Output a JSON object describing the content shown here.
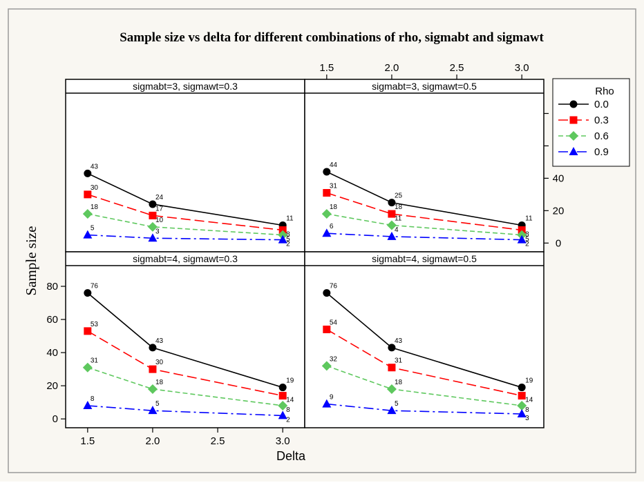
{
  "title": "Sample size vs delta for different combinations of rho, sigmabt and sigmawt",
  "ylabel": "Sample size",
  "xlabel": "Delta",
  "legend_title": "Rho",
  "chart_data": {
    "type": "line",
    "title": "Sample size vs delta for different combinations of rho, sigmabt and sigmawt",
    "xlabel": "Delta",
    "ylabel": "Sample size",
    "x": [
      1.5,
      2.0,
      3.0
    ],
    "xlim": [
      1.4,
      3.1
    ],
    "ylim": [
      -2,
      90
    ],
    "x_ticks": [
      "1.5",
      "2.0",
      "2.5",
      "3.0"
    ],
    "y_ticks": [
      "0",
      "20",
      "40",
      "60",
      "80"
    ],
    "legend": {
      "title": "Rho",
      "placement": "right",
      "entries": [
        "0.0",
        "0.3",
        "0.6",
        "0.9"
      ]
    },
    "series_styles": [
      {
        "color": "#000000",
        "marker": "circle",
        "dash": "solid"
      },
      {
        "color": "#ff0000",
        "marker": "square",
        "dash": "long-dash"
      },
      {
        "color": "#5ec85e",
        "marker": "diamond",
        "dash": "dashed"
      },
      {
        "color": "#0000ff",
        "marker": "triangle",
        "dash": "dash-dot"
      }
    ],
    "panels": [
      {
        "label": "sigmabt=3, sigmawt=0.3",
        "series": [
          {
            "name": "0.0",
            "values": [
              43,
              24,
              11
            ]
          },
          {
            "name": "0.3",
            "values": [
              30,
              17,
              8
            ]
          },
          {
            "name": "0.6",
            "values": [
              18,
              10,
              5
            ]
          },
          {
            "name": "0.9",
            "values": [
              5,
              3,
              2
            ]
          }
        ]
      },
      {
        "label": "sigmabt=3, sigmawt=0.5",
        "series": [
          {
            "name": "0.0",
            "values": [
              44,
              25,
              11
            ]
          },
          {
            "name": "0.3",
            "values": [
              31,
              18,
              8
            ]
          },
          {
            "name": "0.6",
            "values": [
              18,
              11,
              5
            ]
          },
          {
            "name": "0.9",
            "values": [
              6,
              4,
              2
            ]
          }
        ]
      },
      {
        "label": "sigmabt=4, sigmawt=0.3",
        "series": [
          {
            "name": "0.0",
            "values": [
              76,
              43,
              19
            ]
          },
          {
            "name": "0.3",
            "values": [
              53,
              30,
              14
            ]
          },
          {
            "name": "0.6",
            "values": [
              31,
              18,
              8
            ]
          },
          {
            "name": "0.9",
            "values": [
              8,
              5,
              2
            ]
          }
        ]
      },
      {
        "label": "sigmabt=4, sigmawt=0.5",
        "series": [
          {
            "name": "0.0",
            "values": [
              76,
              43,
              19
            ]
          },
          {
            "name": "0.3",
            "values": [
              54,
              31,
              14
            ]
          },
          {
            "name": "0.6",
            "values": [
              32,
              18,
              8
            ]
          },
          {
            "name": "0.9",
            "values": [
              9,
              5,
              3
            ]
          }
        ]
      }
    ]
  }
}
